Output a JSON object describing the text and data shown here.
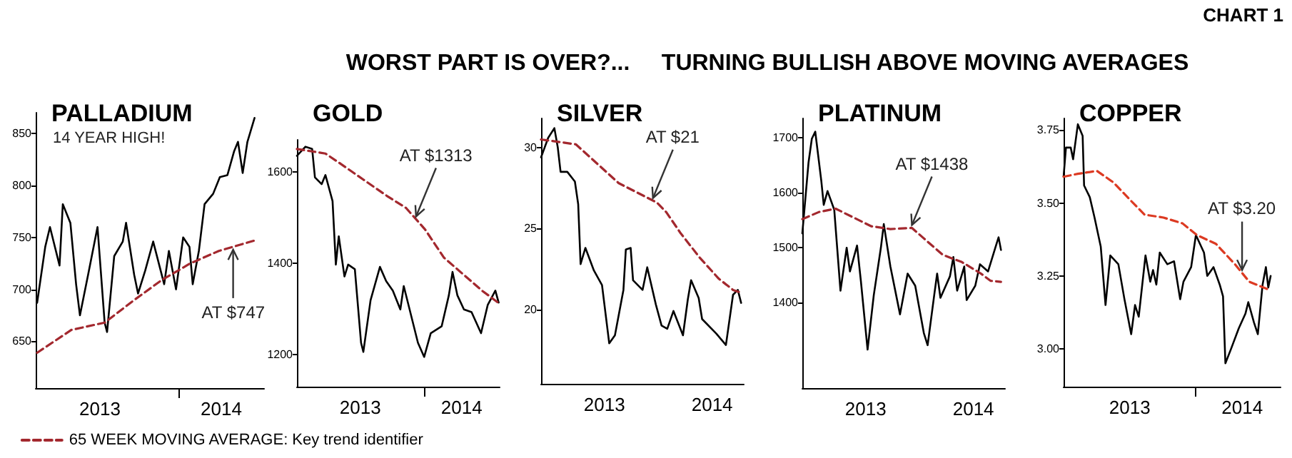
{
  "chart_data": [
    {
      "type": "other",
      "title": "WORST PART IS OVER?...     TURNING BULLISH ABOVE MOVING AVERAGES",
      "annotations": [
        "CHART 1"
      ]
    },
    {
      "type": "line",
      "title": "PALLADIUM",
      "marker": "none",
      "legend": "bottom right",
      "xlim": [
        2013,
        2014.6
      ],
      "xticks": [
        {
          "value": 2013.45,
          "label": "2013"
        },
        {
          "value": 2014,
          "label": null
        },
        {
          "value": 2014.3,
          "label": "2014"
        }
      ],
      "ylim": [
        605,
        870
      ],
      "yticks": [
        650,
        700,
        750,
        800,
        850
      ],
      "annotations": [
        "14 YEAR HIGH!",
        {
          "text": "AT $747",
          "x": 2014.383,
          "y": 741
        }
      ],
      "series": [
        {
          "color": "#000000",
          "line_style": "solid",
          "x": [
            2013.01,
            2013.067,
            2013.1,
            2013.167,
            2013.19,
            2013.243,
            2013.283,
            2013.31,
            2013.367,
            2013.433,
            2013.483,
            2013.5,
            2013.55,
            2013.61,
            2013.633,
            2013.69,
            2013.717,
            2013.767,
            2013.823,
            2013.9,
            2013.933,
            2013.983,
            2014.033,
            2014.077,
            2014.1,
            2014.143,
            2014.183,
            2014.243,
            2014.29,
            2014.343,
            2014.39,
            2014.417,
            2014.45,
            2014.483,
            2014.533
          ],
          "values": [
            687,
            741,
            760,
            723,
            782,
            764,
            705,
            675,
            714,
            760,
            668,
            659,
            732,
            746,
            764,
            714,
            696,
            718,
            746,
            705,
            737,
            700,
            750,
            741,
            705,
            737,
            782,
            792,
            808,
            810,
            833,
            842,
            812,
            842,
            865
          ]
        },
        {
          "name": "65 WEEK MOVING AVERAGE: Key trend identifier",
          "color": "#a3282e",
          "line_style": "dashed",
          "x": [
            2013.01,
            2013.25,
            2013.483,
            2013.683,
            2013.883,
            2014.083,
            2014.283,
            2014.533
          ],
          "values": [
            639,
            661,
            668,
            689,
            709,
            725,
            737,
            747
          ]
        }
      ]
    },
    {
      "type": "line",
      "title": "GOLD",
      "marker": "none",
      "xlim": [
        2013,
        2014.6
      ],
      "xticks": [
        {
          "value": 2013.5,
          "label": "2013"
        },
        {
          "value": 2014,
          "label": null
        },
        {
          "value": 2014.3,
          "label": "2014"
        }
      ],
      "ylim": [
        1130,
        1670
      ],
      "yticks": [
        1200,
        1400,
        1600
      ],
      "annotations": [
        {
          "text": "AT $1313",
          "x": 2013.94,
          "y": 1496
        }
      ],
      "series": [
        {
          "color": "#000000",
          "line_style": "solid",
          "x": [
            2013,
            2013.067,
            2013.12,
            2013.142,
            2013.195,
            2013.225,
            2013.281,
            2013.307,
            2013.33,
            2013.375,
            2013.404,
            2013.457,
            2013.506,
            2013.524,
            2013.581,
            2013.655,
            2013.704,
            2013.757,
            2013.816,
            2013.843,
            2013.899,
            2013.955,
            2014.004,
            2014.056,
            2014.142,
            2014.199,
            2014.228,
            2014.266,
            2014.318,
            2014.378,
            2014.453,
            2014.506,
            2014.566,
            2014.592
          ],
          "values": [
            1635,
            1655,
            1650,
            1588,
            1573,
            1593,
            1536,
            1397,
            1459,
            1371,
            1397,
            1387,
            1226,
            1206,
            1319,
            1392,
            1361,
            1340,
            1299,
            1350,
            1288,
            1226,
            1195,
            1247,
            1262,
            1330,
            1381,
            1330,
            1299,
            1293,
            1247,
            1309,
            1340,
            1314
          ]
        },
        {
          "color": "#a3282e",
          "line_style": "dashed",
          "x": [
            2013,
            2013.112,
            2013.225,
            2013.337,
            2013.524,
            2013.712,
            2013.861,
            2014.011,
            2014.161,
            2014.311,
            2014.461,
            2014.592
          ],
          "values": [
            1650,
            1645,
            1640,
            1619,
            1583,
            1547,
            1521,
            1474,
            1412,
            1376,
            1340,
            1313
          ]
        }
      ]
    },
    {
      "type": "line",
      "title": "SILVER",
      "marker": "none",
      "xlim": [
        2013,
        2014.6
      ],
      "xticks": [
        {
          "value": 2013.5,
          "label": "2013"
        },
        {
          "value": 2014.35,
          "label": "2014"
        }
      ],
      "ylim": [
        15.4,
        31.8
      ],
      "yticks": [
        20,
        25,
        30
      ],
      "annotations": [
        {
          "text": "AT $21",
          "x": 2013.883,
          "y": 26.7
        }
      ],
      "series": [
        {
          "color": "#000000",
          "line_style": "solid",
          "x": [
            2013,
            2013.056,
            2013.105,
            2013.132,
            2013.154,
            2013.207,
            2013.267,
            2013.293,
            2013.312,
            2013.35,
            2013.417,
            2013.481,
            2013.538,
            2013.583,
            2013.65,
            2013.669,
            2013.707,
            2013.726,
            2013.801,
            2013.838,
            2013.906,
            2013.951,
            2013.996,
            2014.045,
            2014.12,
            2014.158,
            2014.184,
            2014.244,
            2014.271,
            2014.383,
            2014.459,
            2014.515,
            2014.553,
            2014.579
          ],
          "values": [
            29.4,
            30.6,
            31.2,
            30.0,
            28.5,
            28.5,
            27.9,
            26.5,
            22.8,
            23.8,
            22.4,
            21.5,
            17.9,
            18.4,
            21.2,
            23.7,
            23.8,
            21.8,
            21.2,
            22.6,
            20.3,
            19.0,
            18.8,
            19.9,
            18.4,
            20.6,
            21.8,
            20.7,
            19.4,
            18.5,
            17.8,
            20.9,
            21.2,
            20.4
          ]
        },
        {
          "color": "#a3282e",
          "line_style": "dashed",
          "x": [
            2013,
            2013.274,
            2013.387,
            2013.613,
            2013.914,
            2013.989,
            2014.102,
            2014.252,
            2014.402,
            2014.515,
            2014.59
          ],
          "values": [
            30.5,
            30.2,
            29.4,
            27.8,
            26.6,
            26.0,
            24.7,
            23.2,
            21.9,
            21.2,
            21
          ]
        }
      ]
    },
    {
      "type": "line",
      "title": "PLATINUM",
      "marker": "none",
      "xlim": [
        2013,
        2014.6
      ],
      "xticks": [
        {
          "value": 2013.5,
          "label": "2013"
        },
        {
          "value": 2014.35,
          "label": "2014"
        }
      ],
      "ylim": [
        1245,
        1735
      ],
      "yticks": [
        1400,
        1500,
        1600,
        1700
      ],
      "annotations": [
        {
          "text": "AT $1438",
          "x": 2013.865,
          "y": 1536
        }
      ],
      "series": [
        {
          "color": "#000000",
          "line_style": "solid",
          "x": [
            2013,
            2013.049,
            2013.075,
            2013.102,
            2013.15,
            2013.169,
            2013.199,
            2013.252,
            2013.301,
            2013.35,
            2013.376,
            2013.432,
            2013.462,
            2013.515,
            2013.564,
            2013.62,
            2013.643,
            2013.695,
            2013.771,
            2013.831,
            2013.891,
            2013.959,
            2013.989,
            2014.041,
            2014.064,
            2014.09,
            2014.165,
            2014.192,
            2014.222,
            2014.278,
            2014.297,
            2014.365,
            2014.402,
            2014.466,
            2014.523,
            2014.549,
            2014.568
          ],
          "values": [
            1526,
            1655,
            1698,
            1711,
            1621,
            1578,
            1603,
            1569,
            1422,
            1500,
            1457,
            1504,
            1440,
            1315,
            1414,
            1500,
            1543,
            1466,
            1379,
            1453,
            1431,
            1345,
            1323,
            1414,
            1453,
            1409,
            1448,
            1483,
            1422,
            1466,
            1405,
            1431,
            1470,
            1457,
            1500,
            1519,
            1496
          ]
        },
        {
          "color": "#a3282e",
          "line_style": "dashed",
          "x": [
            2013,
            2013.132,
            2013.263,
            2013.395,
            2013.545,
            2013.695,
            2013.865,
            2013.959,
            2014.109,
            2014.259,
            2014.41,
            2014.485,
            2014.568
          ],
          "values": [
            1552,
            1565,
            1571,
            1556,
            1539,
            1534,
            1536,
            1517,
            1487,
            1474,
            1453,
            1440,
            1438
          ]
        }
      ]
    },
    {
      "type": "line",
      "title": "COPPER",
      "marker": "none",
      "xlim": [
        2013,
        2014.64
      ],
      "xticks": [
        {
          "value": 2013.5,
          "label": "2013"
        },
        {
          "value": 2014,
          "label": null
        },
        {
          "value": 2014.35,
          "label": "2014"
        }
      ],
      "ylim": [
        2.87,
        3.79
      ],
      "yticks": [
        {
          "value": 3,
          "label": "3.00"
        },
        3.25,
        {
          "value": 3.5,
          "label": "3.50"
        },
        3.75
      ],
      "annotations": [
        {
          "text": "AT $3.20",
          "x": 2014.349,
          "y": 3.26
        }
      ],
      "series": [
        {
          "color": "#000000",
          "line_style": "solid",
          "x": [
            2013,
            2013.018,
            2013.054,
            2013.072,
            2013.108,
            2013.144,
            2013.155,
            2013.198,
            2013.234,
            2013.281,
            2013.317,
            2013.353,
            2013.414,
            2013.46,
            2013.511,
            2013.54,
            2013.568,
            2013.619,
            2013.655,
            2013.676,
            2013.701,
            2013.727,
            2013.784,
            2013.835,
            2013.881,
            2013.906,
            2013.964,
            2014,
            2014.061,
            2014.086,
            2014.133,
            2014.18,
            2014.205,
            2014.223,
            2014.266,
            2014.324,
            2014.374,
            2014.396,
            2014.439,
            2014.468,
            2014.504,
            2014.529,
            2014.547,
            2014.565
          ],
          "values": [
            3.59,
            3.69,
            3.69,
            3.65,
            3.77,
            3.73,
            3.56,
            3.52,
            3.45,
            3.35,
            3.15,
            3.32,
            3.29,
            3.17,
            3.05,
            3.15,
            3.11,
            3.32,
            3.23,
            3.27,
            3.22,
            3.33,
            3.29,
            3.3,
            3.17,
            3.23,
            3.28,
            3.39,
            3.33,
            3.25,
            3.28,
            3.22,
            3.18,
            2.95,
            3.0,
            3.07,
            3.12,
            3.16,
            3.09,
            3.05,
            3.22,
            3.28,
            3.21,
            3.25
          ]
        },
        {
          "color": "#dc3a22",
          "line_style": "dashed",
          "x": [
            2013,
            2013.108,
            2013.252,
            2013.378,
            2013.504,
            2013.612,
            2013.755,
            2013.899,
            2014.007,
            2014.151,
            2014.295,
            2014.403,
            2014.511,
            2014.565
          ],
          "values": [
            3.59,
            3.6,
            3.61,
            3.57,
            3.51,
            3.46,
            3.45,
            3.43,
            3.39,
            3.36,
            3.29,
            3.23,
            3.21,
            3.2
          ]
        }
      ]
    }
  ]
}
